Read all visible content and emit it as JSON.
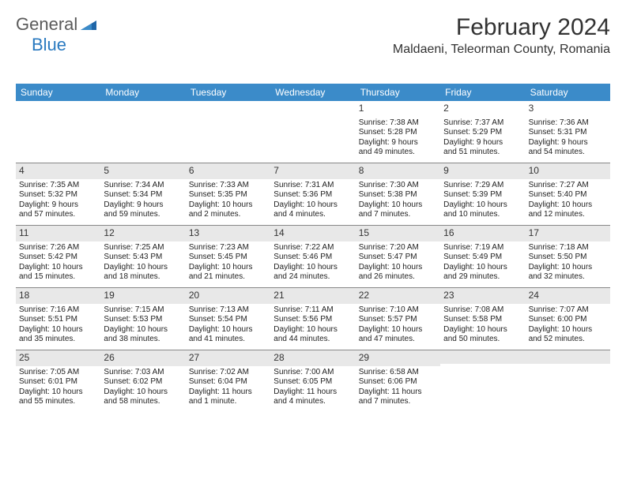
{
  "brand": {
    "part1": "General",
    "part2": "Blue"
  },
  "title": "February 2024",
  "location": "Maldaeni, Teleorman County, Romania",
  "day_names": [
    "Sunday",
    "Monday",
    "Tuesday",
    "Wednesday",
    "Thursday",
    "Friday",
    "Saturday"
  ],
  "header_bg": "#3b8bc9",
  "daynum_bg": "#e8e8e8",
  "weeks": [
    [
      null,
      null,
      null,
      null,
      {
        "n": "1",
        "sr": "Sunrise: 7:38 AM",
        "ss": "Sunset: 5:28 PM",
        "d1": "Daylight: 9 hours",
        "d2": "and 49 minutes."
      },
      {
        "n": "2",
        "sr": "Sunrise: 7:37 AM",
        "ss": "Sunset: 5:29 PM",
        "d1": "Daylight: 9 hours",
        "d2": "and 51 minutes."
      },
      {
        "n": "3",
        "sr": "Sunrise: 7:36 AM",
        "ss": "Sunset: 5:31 PM",
        "d1": "Daylight: 9 hours",
        "d2": "and 54 minutes."
      }
    ],
    [
      {
        "n": "4",
        "sr": "Sunrise: 7:35 AM",
        "ss": "Sunset: 5:32 PM",
        "d1": "Daylight: 9 hours",
        "d2": "and 57 minutes."
      },
      {
        "n": "5",
        "sr": "Sunrise: 7:34 AM",
        "ss": "Sunset: 5:34 PM",
        "d1": "Daylight: 9 hours",
        "d2": "and 59 minutes."
      },
      {
        "n": "6",
        "sr": "Sunrise: 7:33 AM",
        "ss": "Sunset: 5:35 PM",
        "d1": "Daylight: 10 hours",
        "d2": "and 2 minutes."
      },
      {
        "n": "7",
        "sr": "Sunrise: 7:31 AM",
        "ss": "Sunset: 5:36 PM",
        "d1": "Daylight: 10 hours",
        "d2": "and 4 minutes."
      },
      {
        "n": "8",
        "sr": "Sunrise: 7:30 AM",
        "ss": "Sunset: 5:38 PM",
        "d1": "Daylight: 10 hours",
        "d2": "and 7 minutes."
      },
      {
        "n": "9",
        "sr": "Sunrise: 7:29 AM",
        "ss": "Sunset: 5:39 PM",
        "d1": "Daylight: 10 hours",
        "d2": "and 10 minutes."
      },
      {
        "n": "10",
        "sr": "Sunrise: 7:27 AM",
        "ss": "Sunset: 5:40 PM",
        "d1": "Daylight: 10 hours",
        "d2": "and 12 minutes."
      }
    ],
    [
      {
        "n": "11",
        "sr": "Sunrise: 7:26 AM",
        "ss": "Sunset: 5:42 PM",
        "d1": "Daylight: 10 hours",
        "d2": "and 15 minutes."
      },
      {
        "n": "12",
        "sr": "Sunrise: 7:25 AM",
        "ss": "Sunset: 5:43 PM",
        "d1": "Daylight: 10 hours",
        "d2": "and 18 minutes."
      },
      {
        "n": "13",
        "sr": "Sunrise: 7:23 AM",
        "ss": "Sunset: 5:45 PM",
        "d1": "Daylight: 10 hours",
        "d2": "and 21 minutes."
      },
      {
        "n": "14",
        "sr": "Sunrise: 7:22 AM",
        "ss": "Sunset: 5:46 PM",
        "d1": "Daylight: 10 hours",
        "d2": "and 24 minutes."
      },
      {
        "n": "15",
        "sr": "Sunrise: 7:20 AM",
        "ss": "Sunset: 5:47 PM",
        "d1": "Daylight: 10 hours",
        "d2": "and 26 minutes."
      },
      {
        "n": "16",
        "sr": "Sunrise: 7:19 AM",
        "ss": "Sunset: 5:49 PM",
        "d1": "Daylight: 10 hours",
        "d2": "and 29 minutes."
      },
      {
        "n": "17",
        "sr": "Sunrise: 7:18 AM",
        "ss": "Sunset: 5:50 PM",
        "d1": "Daylight: 10 hours",
        "d2": "and 32 minutes."
      }
    ],
    [
      {
        "n": "18",
        "sr": "Sunrise: 7:16 AM",
        "ss": "Sunset: 5:51 PM",
        "d1": "Daylight: 10 hours",
        "d2": "and 35 minutes."
      },
      {
        "n": "19",
        "sr": "Sunrise: 7:15 AM",
        "ss": "Sunset: 5:53 PM",
        "d1": "Daylight: 10 hours",
        "d2": "and 38 minutes."
      },
      {
        "n": "20",
        "sr": "Sunrise: 7:13 AM",
        "ss": "Sunset: 5:54 PM",
        "d1": "Daylight: 10 hours",
        "d2": "and 41 minutes."
      },
      {
        "n": "21",
        "sr": "Sunrise: 7:11 AM",
        "ss": "Sunset: 5:56 PM",
        "d1": "Daylight: 10 hours",
        "d2": "and 44 minutes."
      },
      {
        "n": "22",
        "sr": "Sunrise: 7:10 AM",
        "ss": "Sunset: 5:57 PM",
        "d1": "Daylight: 10 hours",
        "d2": "and 47 minutes."
      },
      {
        "n": "23",
        "sr": "Sunrise: 7:08 AM",
        "ss": "Sunset: 5:58 PM",
        "d1": "Daylight: 10 hours",
        "d2": "and 50 minutes."
      },
      {
        "n": "24",
        "sr": "Sunrise: 7:07 AM",
        "ss": "Sunset: 6:00 PM",
        "d1": "Daylight: 10 hours",
        "d2": "and 52 minutes."
      }
    ],
    [
      {
        "n": "25",
        "sr": "Sunrise: 7:05 AM",
        "ss": "Sunset: 6:01 PM",
        "d1": "Daylight: 10 hours",
        "d2": "and 55 minutes."
      },
      {
        "n": "26",
        "sr": "Sunrise: 7:03 AM",
        "ss": "Sunset: 6:02 PM",
        "d1": "Daylight: 10 hours",
        "d2": "and 58 minutes."
      },
      {
        "n": "27",
        "sr": "Sunrise: 7:02 AM",
        "ss": "Sunset: 6:04 PM",
        "d1": "Daylight: 11 hours",
        "d2": "and 1 minute."
      },
      {
        "n": "28",
        "sr": "Sunrise: 7:00 AM",
        "ss": "Sunset: 6:05 PM",
        "d1": "Daylight: 11 hours",
        "d2": "and 4 minutes."
      },
      {
        "n": "29",
        "sr": "Sunrise: 6:58 AM",
        "ss": "Sunset: 6:06 PM",
        "d1": "Daylight: 11 hours",
        "d2": "and 7 minutes."
      },
      null,
      null
    ]
  ]
}
